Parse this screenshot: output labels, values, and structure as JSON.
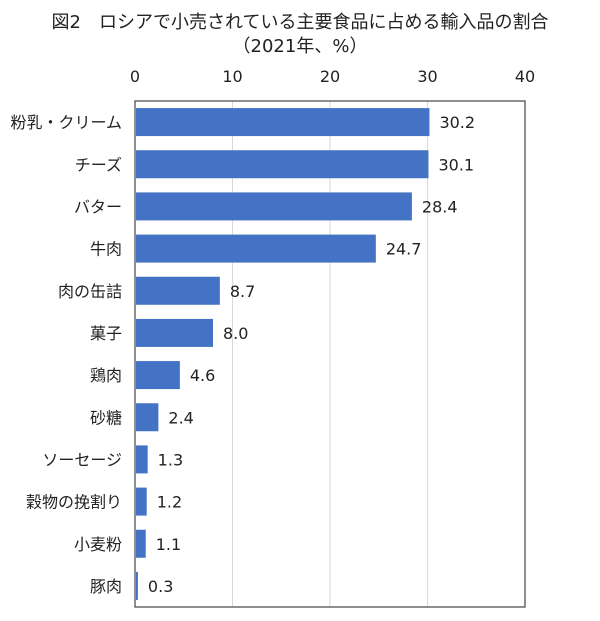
{
  "chart_data": {
    "type": "bar",
    "orientation": "horizontal",
    "title": "図2　ロシアで小売されている主要食品に占める輸入品の割合",
    "subtitle": "（2021年、%）",
    "categories": [
      "粉乳・クリーム",
      "チーズ",
      "バター",
      "牛肉",
      "肉の缶詰",
      "菓子",
      "鶏肉",
      "砂糖",
      "ソーセージ",
      "穀物の挽割り",
      "小麦粉",
      "豚肉"
    ],
    "values": [
      30.2,
      30.1,
      28.4,
      24.7,
      8.7,
      8.0,
      4.6,
      2.4,
      1.3,
      1.2,
      1.1,
      0.3
    ],
    "value_labels": [
      "30.2",
      "30.1",
      "28.4",
      "24.7",
      "8.7",
      "8.0",
      "4.6",
      "2.4",
      "1.3",
      "1.2",
      "1.1",
      "0.3"
    ],
    "xlim": [
      0,
      40
    ],
    "xticks": [
      "0",
      "10",
      "20",
      "30",
      "40"
    ],
    "xtick_values": [
      0,
      10,
      20,
      30,
      40
    ],
    "xaxis_position": "top",
    "grid": true,
    "bar_color": "#4472C4"
  }
}
